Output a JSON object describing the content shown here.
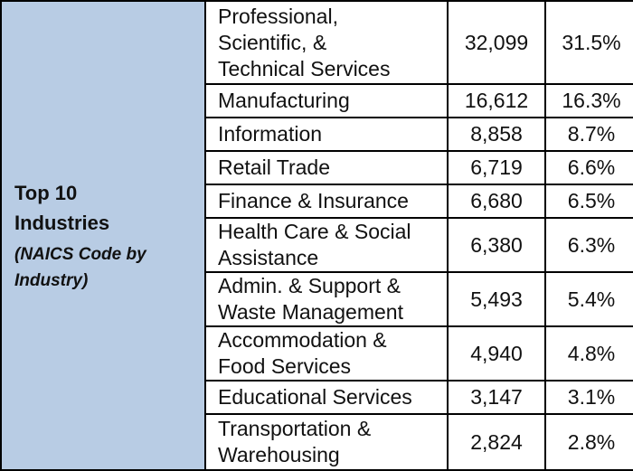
{
  "category": {
    "title_line1": "Top 10",
    "title_line2": "Industries",
    "subtitle_line1": "(NAICS Code by",
    "subtitle_line2": "Industry)",
    "background": "#b8cce4"
  },
  "rows": [
    {
      "industry_lines": [
        "Professional,",
        "Scientific, &",
        "Technical Services"
      ],
      "count": "32,099",
      "percent": "31.5%"
    },
    {
      "industry_lines": [
        "Manufacturing"
      ],
      "count": "16,612",
      "percent": "16.3%"
    },
    {
      "industry_lines": [
        "Information"
      ],
      "count": "8,858",
      "percent": "8.7%"
    },
    {
      "industry_lines": [
        "Retail Trade"
      ],
      "count": "6,719",
      "percent": "6.6%"
    },
    {
      "industry_lines": [
        "Finance & Insurance"
      ],
      "count": "6,680",
      "percent": "6.5%"
    },
    {
      "industry_lines": [
        "Health Care & Social",
        "Assistance"
      ],
      "count": "6,380",
      "percent": "6.3%"
    },
    {
      "industry_lines": [
        "Admin. & Support &",
        "Waste Management"
      ],
      "count": "5,493",
      "percent": "5.4%"
    },
    {
      "industry_lines": [
        "Accommodation &",
        "Food Services"
      ],
      "count": "4,940",
      "percent": "4.8%"
    },
    {
      "industry_lines": [
        "Educational Services"
      ],
      "count": "3,147",
      "percent": "3.1%"
    },
    {
      "industry_lines": [
        "Transportation &",
        "Warehousing"
      ],
      "count": "2,824",
      "percent": "2.8%"
    }
  ]
}
